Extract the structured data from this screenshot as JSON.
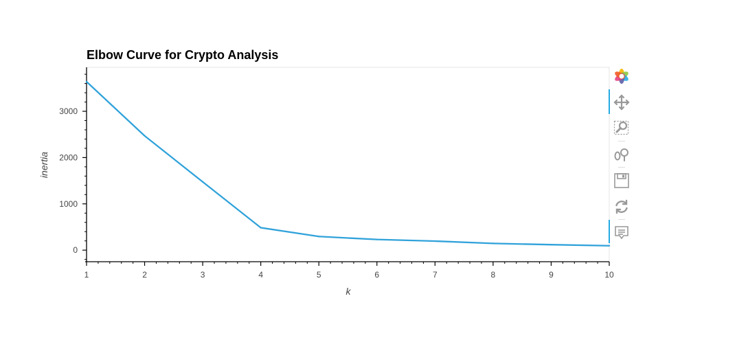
{
  "chart_data": {
    "type": "line",
    "title": "Elbow Curve for Crypto Analysis",
    "xlabel": "k",
    "ylabel": "inertia",
    "x": [
      1,
      2,
      3,
      4,
      5,
      6,
      7,
      8,
      9,
      10
    ],
    "series": [
      {
        "values": [
          3640,
          2470,
          1475,
          485,
          295,
          230,
          195,
          145,
          118,
          95
        ],
        "color": "#30a2da"
      }
    ],
    "xlim": [
      1,
      10
    ],
    "ylim": [
      -250,
      3950
    ],
    "x_ticks": [
      1,
      2,
      3,
      4,
      5,
      6,
      7,
      8,
      9,
      10
    ],
    "y_ticks": [
      0,
      1000,
      2000,
      3000
    ],
    "grid": false,
    "legend": "none"
  },
  "toolbar": {
    "icons": [
      "bokeh-logo-icon",
      "pan-icon",
      "box-zoom-icon",
      "wheel-zoom-icon",
      "save-icon",
      "reset-icon",
      "hover-icon"
    ]
  }
}
